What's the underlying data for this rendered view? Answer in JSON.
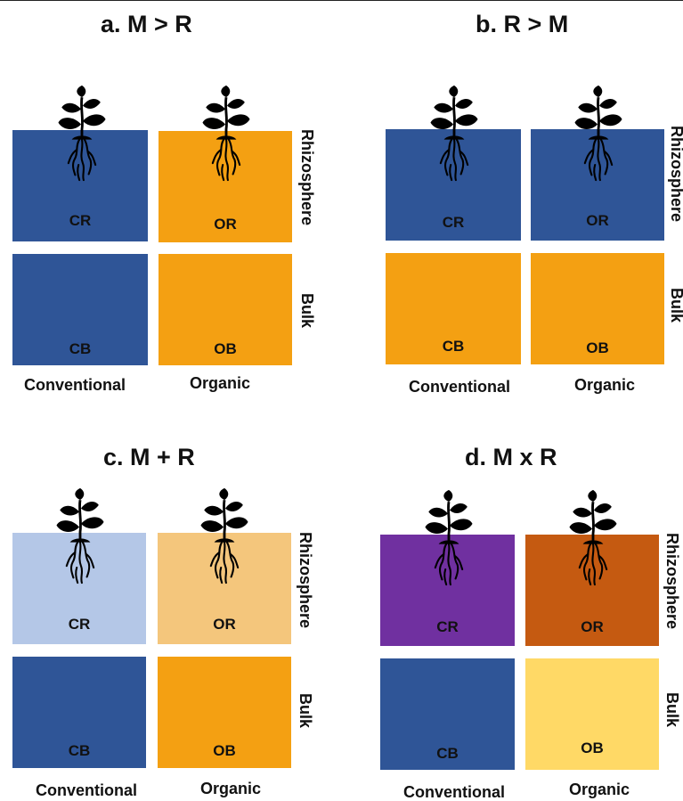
{
  "panels": [
    {
      "title": "a. M > R",
      "boxes": {
        "cr": "CR",
        "or": "OR",
        "cb": "CB",
        "ob": "OB"
      },
      "colors": {
        "cr": "#2f5597",
        "or": "#f4a012",
        "cb": "#2f5597",
        "ob": "#f4a012"
      },
      "row_labels": {
        "rhizosphere": "Rhizosphere",
        "bulk": "Bulk"
      },
      "col_labels": {
        "conventional": "Conventional",
        "organic": "Organic"
      }
    },
    {
      "title": "b. R > M",
      "boxes": {
        "cr": "CR",
        "or": "OR",
        "cb": "CB",
        "ob": "OB"
      },
      "colors": {
        "cr": "#2f5597",
        "or": "#2f5597",
        "cb": "#f4a012",
        "ob": "#f4a012"
      },
      "row_labels": {
        "rhizosphere": "Rhizosphere",
        "bulk": "Bulk"
      },
      "col_labels": {
        "conventional": "Conventional",
        "organic": "Organic"
      }
    },
    {
      "title": "c. M + R",
      "boxes": {
        "cr": "CR",
        "or": "OR",
        "cb": "CB",
        "ob": "OB"
      },
      "colors": {
        "cr": "#b4c7e7",
        "or": "#f4c67c",
        "cb": "#2f5597",
        "ob": "#f4a012"
      },
      "row_labels": {
        "rhizosphere": "Rhizosphere",
        "bulk": "Bulk"
      },
      "col_labels": {
        "conventional": "Conventional",
        "organic": "Organic"
      }
    },
    {
      "title": "d. M x R",
      "boxes": {
        "cr": "CR",
        "or": "OR",
        "cb": "CB",
        "ob": "OB"
      },
      "colors": {
        "cr": "#7030a0",
        "or": "#c55a11",
        "cb": "#2f5597",
        "ob": "#ffd966"
      },
      "row_labels": {
        "rhizosphere": "Rhizosphere",
        "bulk": "Bulk"
      },
      "col_labels": {
        "conventional": "Conventional",
        "organic": "Organic"
      }
    }
  ],
  "icons": {
    "plant": "plant-seedling-icon"
  }
}
